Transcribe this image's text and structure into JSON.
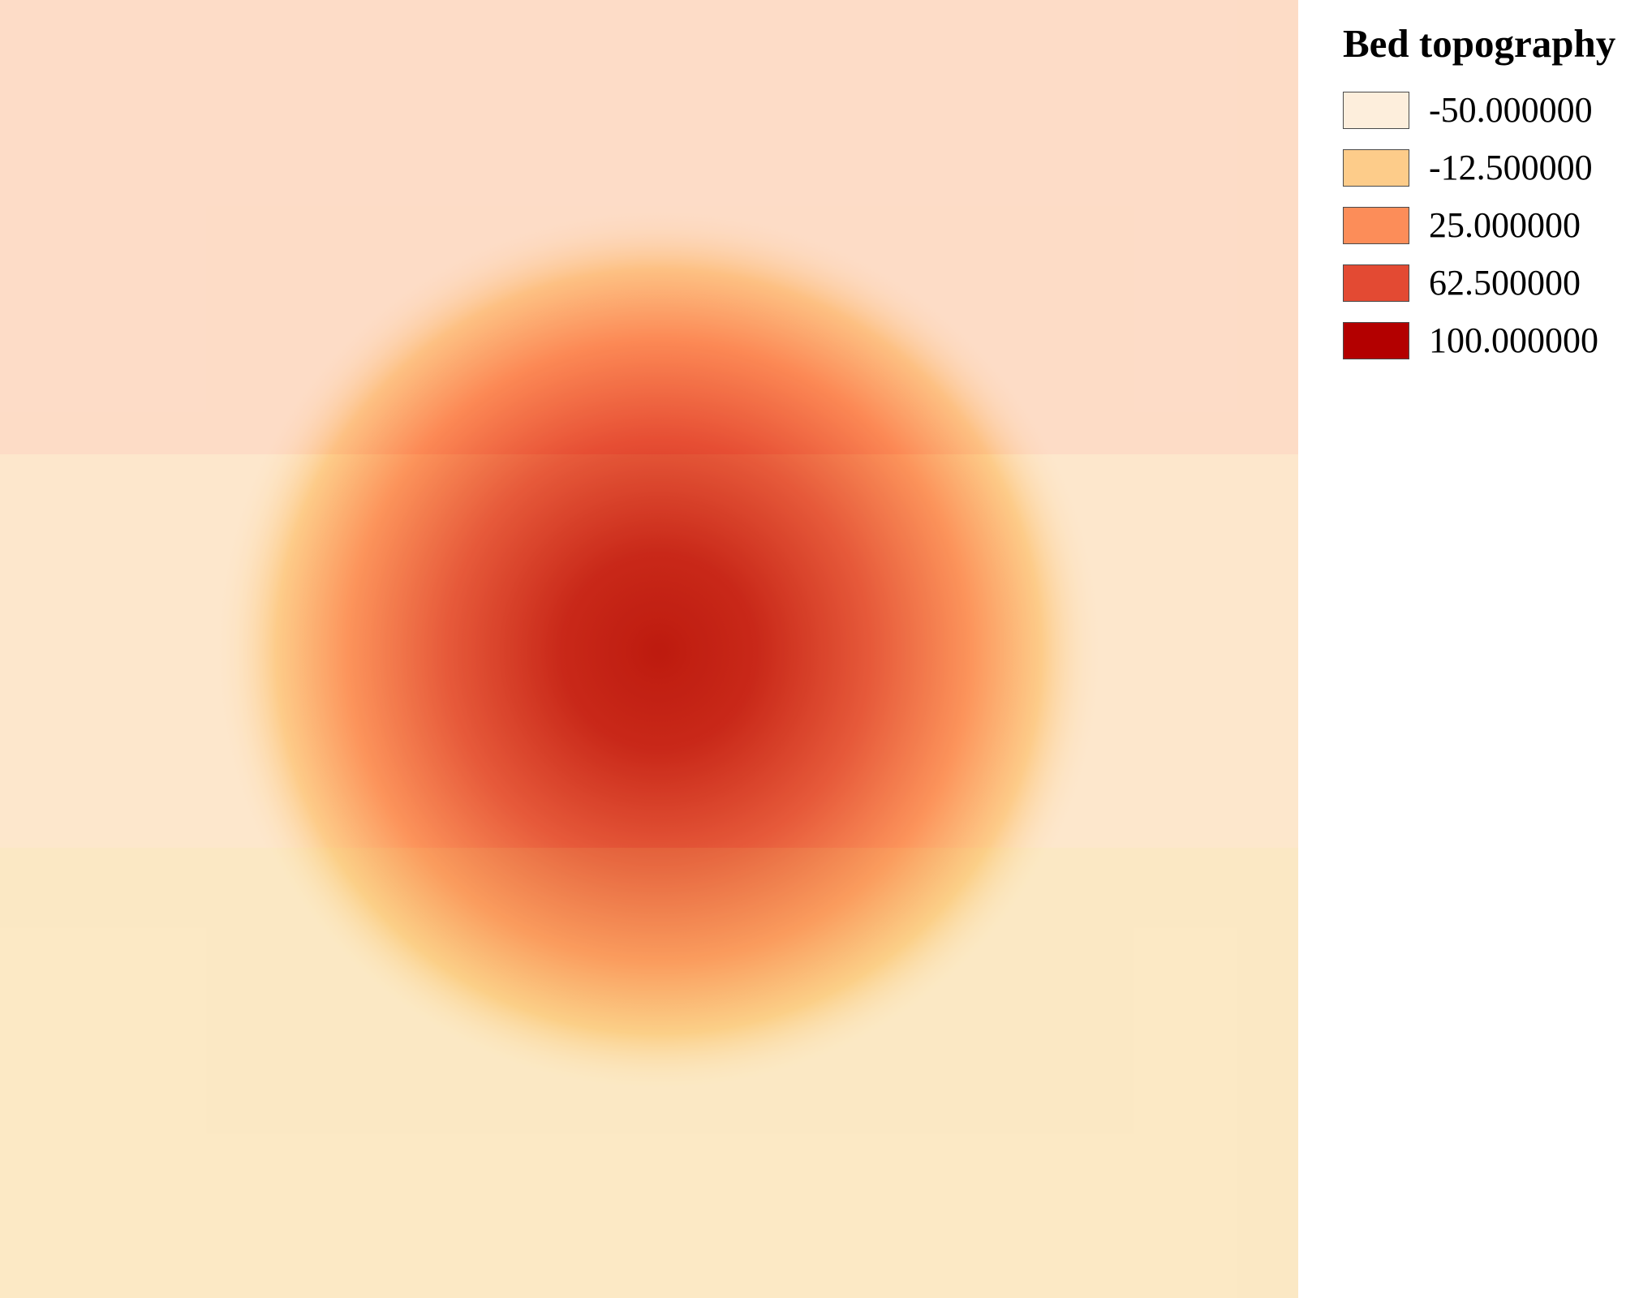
{
  "map": {
    "layer_name": "Bed topography",
    "feature": "circular elevation dome",
    "peak_value": 100.0,
    "min_value": -50.0,
    "bands": [
      {
        "tint": "#ff7043",
        "opacity": 0.14
      },
      {
        "tint": "#fcbc6a",
        "opacity": 0.14
      },
      {
        "tint": "#f7d774",
        "opacity": 0.22
      }
    ]
  },
  "legend": {
    "title": "Bed topography",
    "items": [
      {
        "label": "-50.000000",
        "value": -50.0,
        "color": "#fdeedc"
      },
      {
        "label": "-12.500000",
        "value": -12.5,
        "color": "#fdcc8a"
      },
      {
        "label": "25.000000",
        "value": 25.0,
        "color": "#fc8d59"
      },
      {
        "label": "62.500000",
        "value": 62.5,
        "color": "#e34a33"
      },
      {
        "label": "100.000000",
        "value": 100.0,
        "color": "#b30000"
      }
    ]
  }
}
